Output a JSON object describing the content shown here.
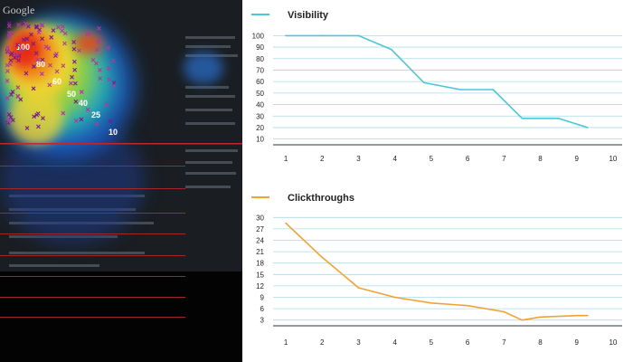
{
  "heatmap": {
    "brand_text": "Google",
    "labels": [
      "100",
      "80",
      "60",
      "50",
      "40",
      "25",
      "10"
    ]
  },
  "chart_data": [
    {
      "type": "line",
      "title": "",
      "legend": "Visibility",
      "legend_position": "top-left",
      "color": "#4fc6d6",
      "x_ticks": [
        1,
        2,
        3,
        4,
        5,
        6,
        7,
        8,
        9,
        10
      ],
      "y_ticks": [
        10,
        20,
        30,
        40,
        50,
        60,
        70,
        80,
        90,
        100
      ],
      "ylim": [
        5,
        105
      ],
      "xlim": [
        0.75,
        10.25
      ],
      "grid": "horizontal",
      "series": [
        {
          "name": "Visibility",
          "x": [
            1,
            2,
            3,
            3.9,
            4.8,
            5.8,
            6.7,
            7.5,
            8.5,
            9.3
          ],
          "y": [
            100,
            100,
            100,
            88,
            59,
            53,
            53,
            28,
            28,
            20
          ]
        }
      ]
    },
    {
      "type": "line",
      "title": "",
      "legend": "Clickthroughs",
      "legend_position": "top-left",
      "color": "#f2a232",
      "x_ticks": [
        1,
        2,
        3,
        4,
        5,
        6,
        7,
        8,
        9,
        10
      ],
      "y_ticks": [
        3,
        6,
        9,
        12,
        15,
        18,
        21,
        24,
        27,
        30
      ],
      "ylim": [
        1.5,
        31.5
      ],
      "xlim": [
        0.75,
        10.25
      ],
      "grid": "horizontal",
      "series": [
        {
          "name": "Clickthroughs",
          "x": [
            1,
            2,
            3,
            4,
            5,
            6,
            7,
            7.5,
            8,
            9,
            9.3
          ],
          "y": [
            28.5,
            19.5,
            11.5,
            9.0,
            7.5,
            6.8,
            5.2,
            3.0,
            3.8,
            4.2,
            4.2
          ]
        }
      ]
    }
  ]
}
